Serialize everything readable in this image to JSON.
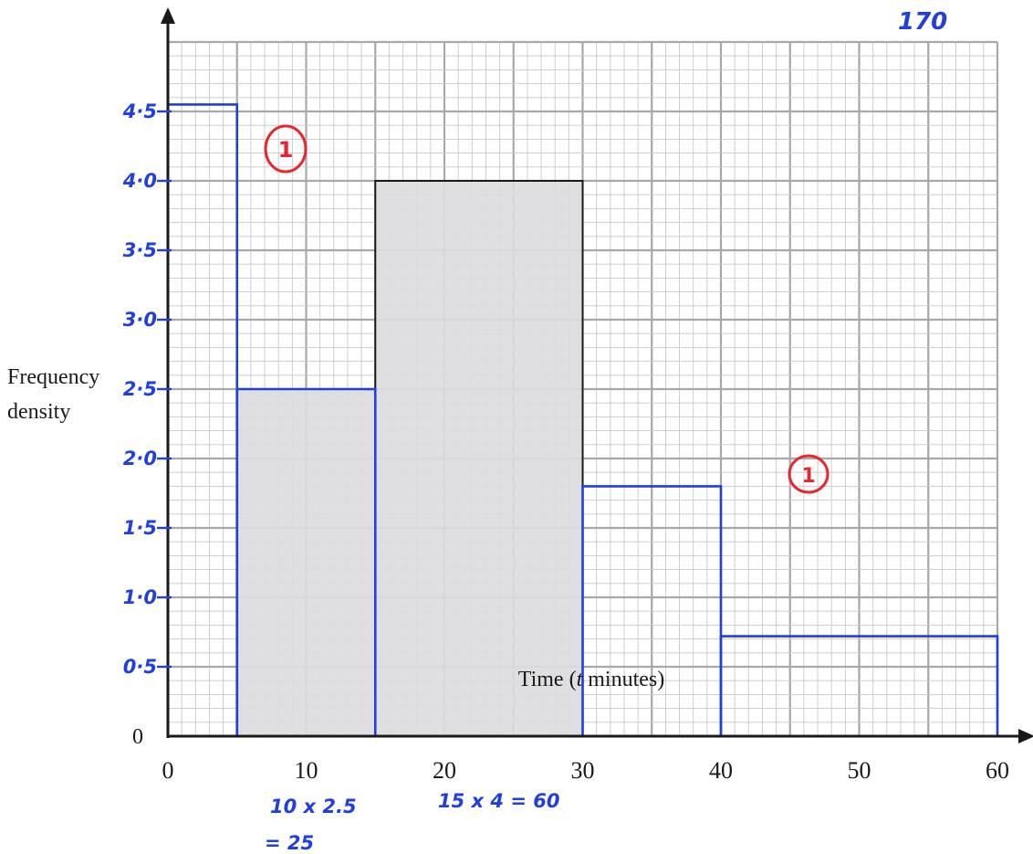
{
  "chart_data": {
    "type": "bar",
    "subtype": "histogram",
    "xlabel_parts": [
      "Time (",
      "t",
      " minutes)"
    ],
    "ylabel_lines": [
      "Frequency",
      "density"
    ],
    "x_ticks": [
      "0",
      "10",
      "20",
      "30",
      "40",
      "50",
      "60"
    ],
    "x_tick_values": [
      0,
      10,
      20,
      30,
      40,
      50,
      60
    ],
    "y_zero_label": "0",
    "xlim": [
      0,
      60
    ],
    "ylim": [
      0,
      5
    ],
    "grid": true,
    "printed_bars": [
      {
        "x0": 5,
        "x1": 15,
        "density": 2.5
      },
      {
        "x0": 15,
        "x1": 30,
        "density": 4.0
      }
    ],
    "drawn_bars": [
      {
        "x0": 0,
        "x1": 5,
        "density": 4.55
      },
      {
        "x0": 5,
        "x1": 15,
        "density": 2.5
      },
      {
        "x0": 30,
        "x1": 40,
        "density": 1.8
      },
      {
        "x0": 40,
        "x1": 60,
        "density": 0.72
      }
    ],
    "handwritten_y_ticks": [
      {
        "value": 0.5,
        "label": "0·5"
      },
      {
        "value": 1.0,
        "label": "1·0"
      },
      {
        "value": 1.5,
        "label": "1·5"
      },
      {
        "value": 2.0,
        "label": "2·0"
      },
      {
        "value": 2.5,
        "label": "2·5"
      },
      {
        "value": 3.0,
        "label": "3·0"
      },
      {
        "value": 3.5,
        "label": "3·5"
      },
      {
        "value": 4.0,
        "label": "4·0"
      },
      {
        "value": 4.5,
        "label": "4·5"
      }
    ],
    "annotations": {
      "total": "170",
      "calc1_line1": "10 x 2.5",
      "calc1_line2": "= 25",
      "calc2": "15 x 4 = 60",
      "mark1": "1",
      "mark2": "1"
    }
  },
  "colors": {
    "grid_minor": "#c8c8c8",
    "grid_major": "#a8a8a8",
    "axis": "#1a1a1a",
    "printed_fill": "#dcdcde",
    "printed_stroke": "#1a1a1a",
    "pen_blue": "#1f3fe0",
    "pen_red": "#e8262d"
  }
}
